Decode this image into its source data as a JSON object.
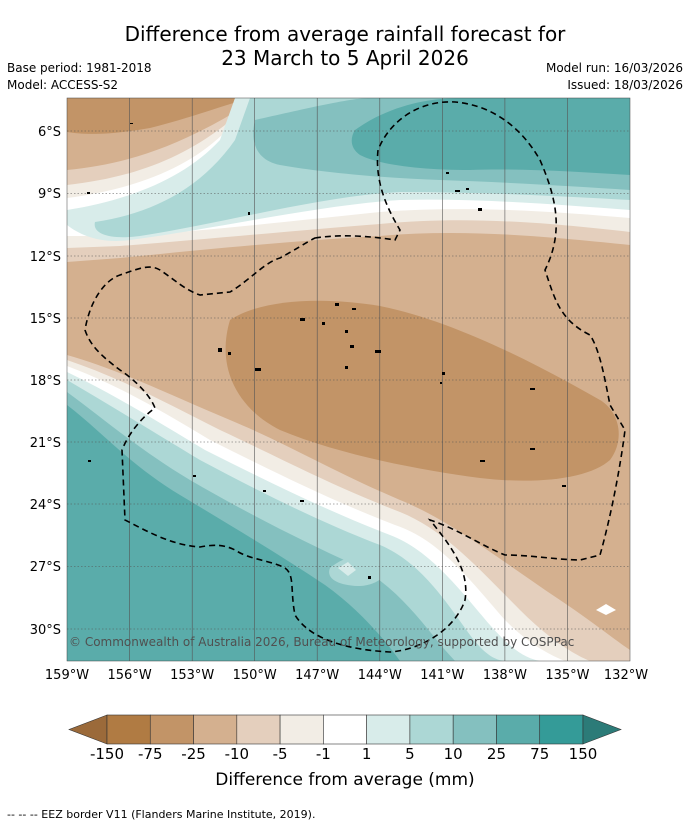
{
  "title_line1": "Difference from average rainfall forecast for",
  "title_line2": "23 March to 5 April 2026",
  "meta": {
    "base_period": "Base period: 1981-2018",
    "model": "Model: ACCESS-S2",
    "model_run": "Model run: 16/03/2026",
    "issued": "Issued: 18/03/2026"
  },
  "copyright": "© Commonwealth of Australia 2026, Bureau of Meteorology, supported by COSPPac",
  "lat_labels": [
    "6°S",
    "9°S",
    "12°S",
    "15°S",
    "18°S",
    "21°S",
    "24°S",
    "27°S",
    "30°S"
  ],
  "lon_labels": [
    "159°W",
    "156°W",
    "153°W",
    "150°W",
    "147°W",
    "144°W",
    "141°W",
    "138°W",
    "135°W",
    "132°W"
  ],
  "colorbar": {
    "labels": [
      "-150",
      "-75",
      "-25",
      "-10",
      "-5",
      "-1",
      "1",
      "5",
      "10",
      "25",
      "75",
      "150"
    ],
    "colors": [
      "#9b6a3a",
      "#b07b43",
      "#c29467",
      "#d4b08f",
      "#e4cfbd",
      "#f2ede5",
      "#ffffff",
      "#d8ecea",
      "#acd7d5",
      "#84c0bf",
      "#5aacaa",
      "#349b98",
      "#2c7b78"
    ],
    "title": "Difference from average (mm)"
  },
  "footer": "--  --  -- EEZ border V11 (Flanders Marine Institute, 2019)."
}
